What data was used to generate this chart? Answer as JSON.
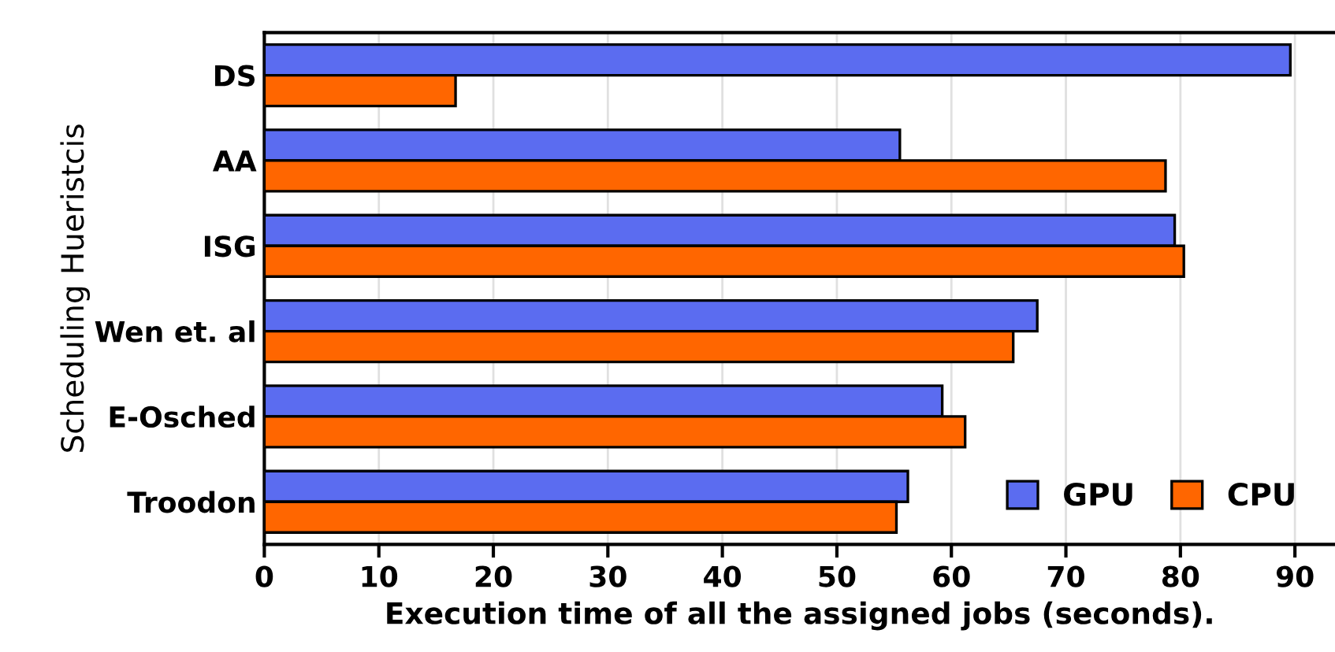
{
  "chart_data": {
    "type": "bar",
    "orientation": "horizontal",
    "xlabel": "Execution time of all the assigned jobs (seconds).",
    "ylabel": "Scheduling Hueristcis",
    "categories": [
      "DS",
      "AA",
      "ISG",
      "Wen et. al",
      "E-Osched",
      "Troodon"
    ],
    "series": [
      {
        "name": "GPU",
        "color": "#5b6cf0",
        "values": [
          89.6,
          55.5,
          79.5,
          67.5,
          59.2,
          56.2
        ]
      },
      {
        "name": "CPU",
        "color": "#ff6600",
        "values": [
          16.7,
          78.7,
          80.3,
          65.4,
          61.2,
          55.2
        ]
      }
    ],
    "xlim": [
      0,
      93.5
    ],
    "xticks": [
      0,
      10,
      20,
      30,
      40,
      50,
      60,
      70,
      80,
      90
    ],
    "grid": "x",
    "legend": "bottom right"
  }
}
